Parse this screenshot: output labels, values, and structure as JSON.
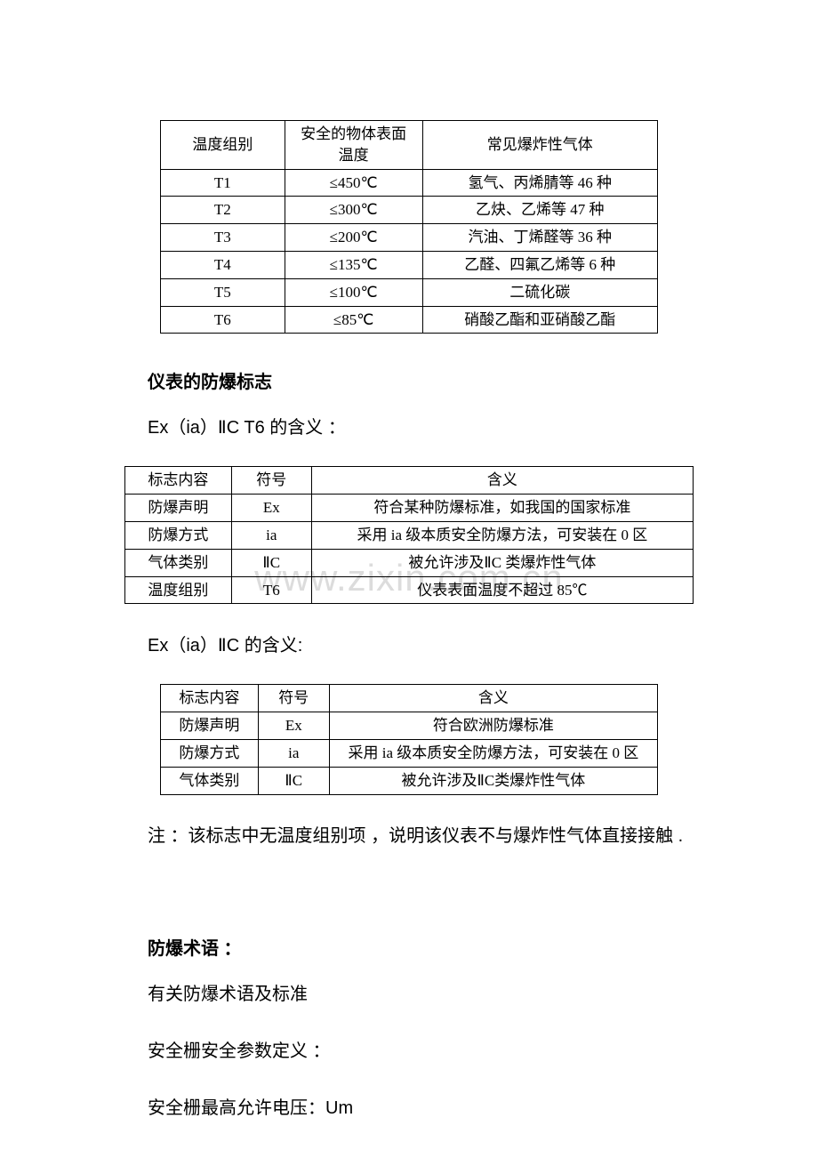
{
  "watermark": "www.zixin.com.cn",
  "table1": {
    "headers": [
      "温度组别",
      "安全的物体表面温度",
      "常见爆炸性气体"
    ],
    "rows": [
      [
        "T1",
        "≤450℃",
        "氢气、丙烯腈等 46 种"
      ],
      [
        "T2",
        "≤300℃",
        "乙炔、乙烯等 47 种"
      ],
      [
        "T3",
        "≤200℃",
        "汽油、丁烯醛等 36 种"
      ],
      [
        "T4",
        "≤135℃",
        "乙醛、四氟乙烯等 6 种"
      ],
      [
        "T5",
        "≤100℃",
        "二硫化碳"
      ],
      [
        "T6",
        "≤85℃",
        "硝酸乙酯和亚硝酸乙酯"
      ]
    ]
  },
  "heading1": "仪表的防爆标志",
  "para1": "Ex（ia）ⅡC T6 的含义 ：",
  "table2": {
    "headers": [
      "标志内容",
      "符号",
      "含义"
    ],
    "rows": [
      [
        "防爆声明",
        "Ex",
        "符合某种防爆标准，如我国的国家标准"
      ],
      [
        "防爆方式",
        "ia",
        "采用 ia 级本质安全防爆方法，可安装在 0 区"
      ],
      [
        "气体类别",
        "ⅡC",
        "被允许涉及ⅡC 类爆炸性气体"
      ],
      [
        "温度组别",
        "T6",
        "仪表表面温度不超过 85℃"
      ]
    ]
  },
  "para2": "Ex（ia）ⅡC 的含义:",
  "table3": {
    "headers": [
      "标志内容",
      "符号",
      "含义"
    ],
    "rows": [
      [
        "防爆声明",
        "Ex",
        "符合欧洲防爆标准"
      ],
      [
        "防爆方式",
        "ia",
        "采用 ia 级本质安全防爆方法，可安装在 0 区"
      ],
      [
        "气体类别",
        "ⅡC",
        "被允许涉及ⅡC类爆炸性气体"
      ]
    ]
  },
  "note": "注 ：该标志中无温度组别项 ，说明该仪表不与爆炸性气体直接接触 .",
  "heading2": "防爆术语 ：",
  "para3": "有关防爆术语及标准",
  "para4": "安全栅安全参数定义 ：",
  "para5": "安全栅最高允许电压：Um"
}
